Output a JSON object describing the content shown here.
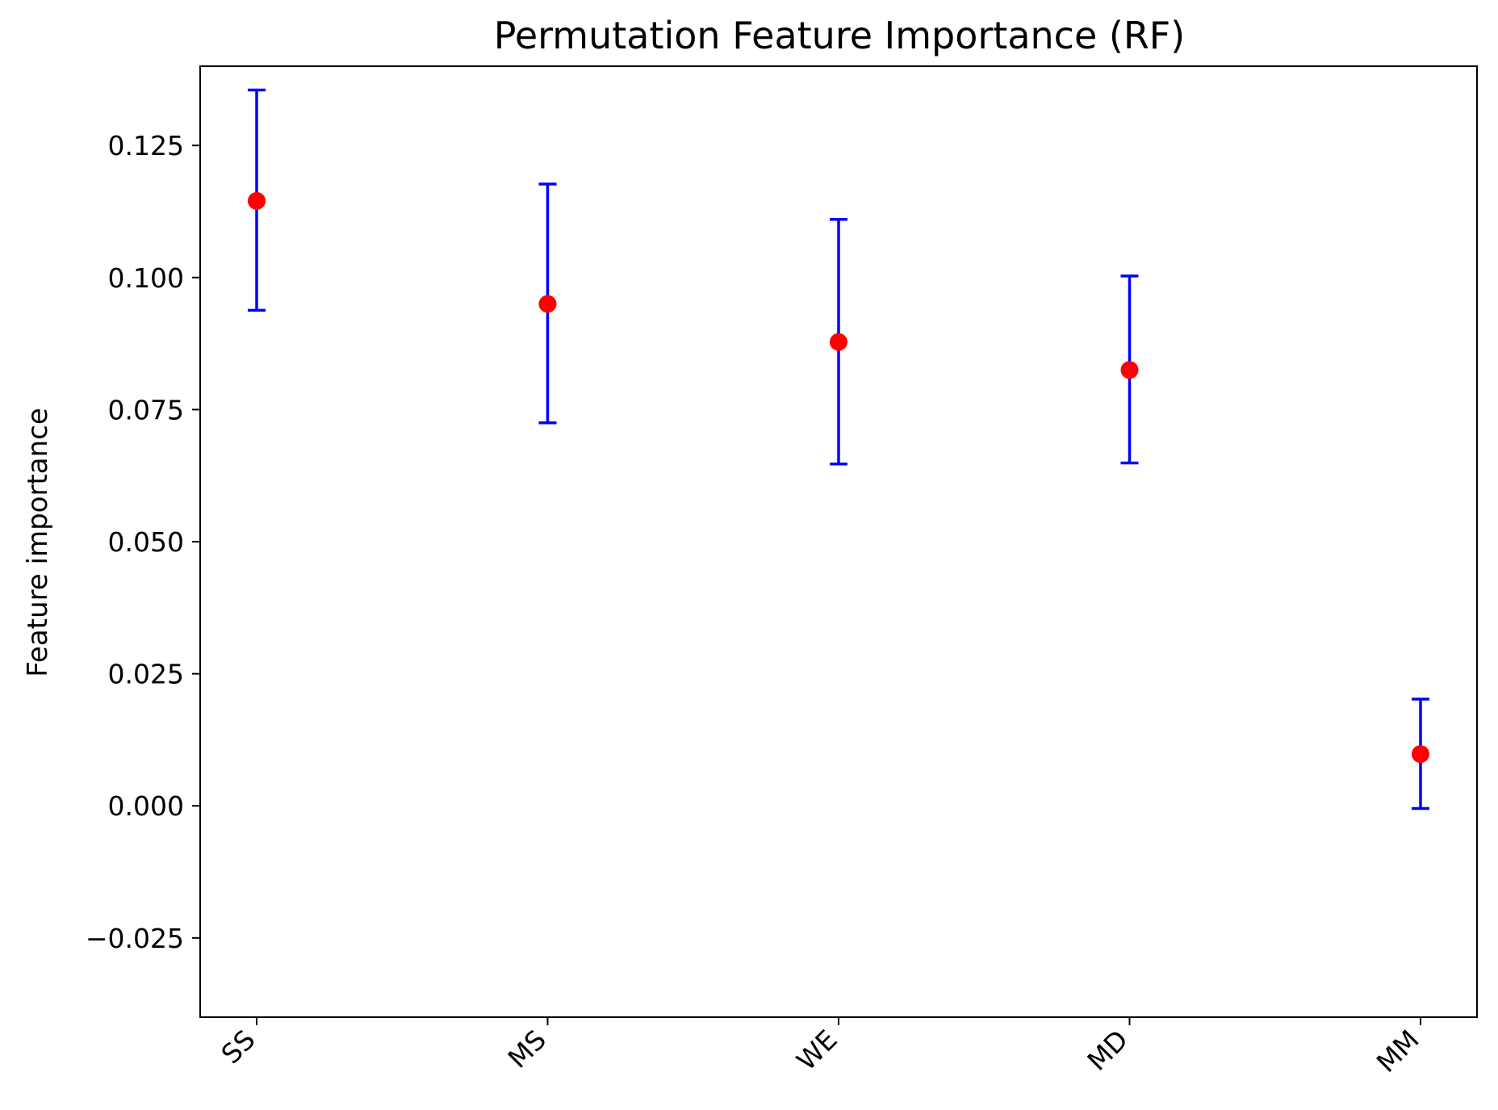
{
  "chart_data": {
    "type": "scatter",
    "title": "Permutation Feature Importance (RF)",
    "xlabel": "",
    "ylabel": "Feature importance",
    "categories": [
      "SS",
      "MS",
      "WE",
      "MD",
      "MM"
    ],
    "series": [
      {
        "values": [
          0.1145,
          0.095,
          0.0878,
          0.0825,
          0.0098
        ],
        "error_low": [
          0.0938,
          0.0725,
          0.0647,
          0.0649,
          -0.0005
        ],
        "error_high": [
          0.1355,
          0.1177,
          0.111,
          0.1003,
          0.0202
        ],
        "marker_color": "#ff0000",
        "errorbar_color": "#0000ff"
      }
    ],
    "yticks": [
      -0.025,
      0.0,
      0.025,
      0.05,
      0.075,
      0.1,
      0.125
    ],
    "ytick_labels": [
      "−0.025",
      "0.000",
      "0.025",
      "0.050",
      "0.075",
      "0.100",
      "0.125"
    ],
    "ylim": [
      -0.04,
      0.14
    ],
    "grid": false,
    "legend": "none"
  }
}
